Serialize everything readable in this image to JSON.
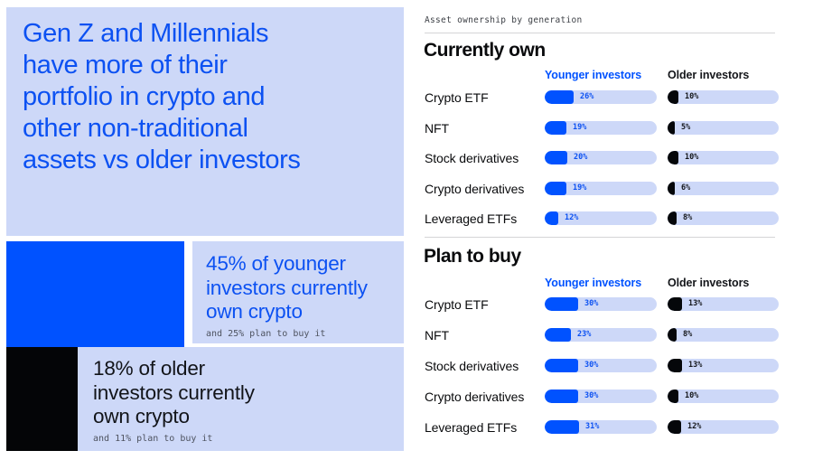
{
  "brand_color": "#0052ff",
  "panel_color": "#cdd8f8",
  "left_panel": {
    "headline": "Gen Z and Millennials\nhave more of their\nportfolio in crypto and\nother non-traditional\nassets vs older investors",
    "younger": {
      "stat": "45% of younger\ninvestors currently\nown crypto",
      "note": "and 25% plan to buy it",
      "bar_pct": 45,
      "bar_color": "#0052ff"
    },
    "older": {
      "stat": "18% of older\ninvestors currently\nown crypto",
      "note": "and 11% plan to buy it",
      "bar_pct": 18,
      "bar_color": "#05070a"
    }
  },
  "right_panel": {
    "eyebrow": "Asset ownership by generation",
    "unit": "%"
  },
  "chart_data": [
    {
      "type": "bar",
      "title": "Currently own",
      "categories": [
        "Crypto ETF",
        "NFT",
        "Stock derivatives",
        "Crypto derivatives",
        "Leveraged ETFs"
      ],
      "series": [
        {
          "name": "Younger investors",
          "color": "#0052ff",
          "values": [
            26,
            19,
            20,
            19,
            12
          ]
        },
        {
          "name": "Older investors",
          "color": "#05070a",
          "values": [
            10,
            5,
            10,
            6,
            8
          ]
        }
      ],
      "xlabel": "",
      "ylabel": "",
      "xlim": [
        0,
        100
      ],
      "legend_position": "top",
      "grid": false,
      "unit": "%"
    },
    {
      "type": "bar",
      "title": "Plan to buy",
      "categories": [
        "Crypto ETF",
        "NFT",
        "Stock derivatives",
        "Crypto derivatives",
        "Leveraged ETFs"
      ],
      "series": [
        {
          "name": "Younger investors",
          "color": "#0052ff",
          "values": [
            30,
            23,
            30,
            30,
            31
          ]
        },
        {
          "name": "Older investors",
          "color": "#05070a",
          "values": [
            13,
            8,
            13,
            10,
            12
          ]
        }
      ],
      "xlabel": "",
      "ylabel": "",
      "xlim": [
        0,
        100
      ],
      "legend_position": "top",
      "grid": false,
      "unit": "%"
    }
  ]
}
